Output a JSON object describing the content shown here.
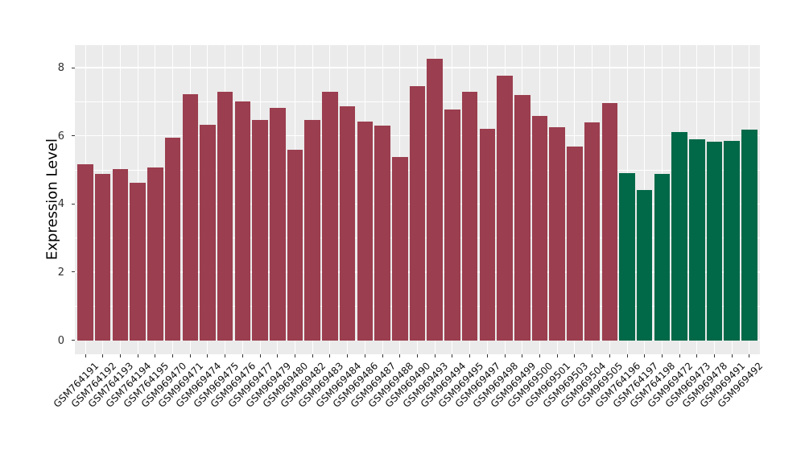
{
  "chart_data": {
    "type": "bar",
    "title": "",
    "xlabel": "",
    "ylabel": "Expression Level",
    "y_ticks": [
      0,
      2,
      4,
      6,
      8
    ],
    "y_minor_ticks": [
      1,
      3,
      5,
      7
    ],
    "ylim": [
      0,
      8.25
    ],
    "grid": true,
    "legend_position": "none",
    "panel_background": "#EBEBEB",
    "gridline_color": "#FFFFFF",
    "group_colors": {
      "red": "#9B3E4F",
      "green": "#026948"
    },
    "categories": [
      "GSM764191",
      "GSM764192",
      "GSM764193",
      "GSM764194",
      "GSM764195",
      "GSM969470",
      "GSM969471",
      "GSM969474",
      "GSM969475",
      "GSM969476",
      "GSM969477",
      "GSM969479",
      "GSM969480",
      "GSM969482",
      "GSM969483",
      "GSM969484",
      "GSM969486",
      "GSM969487",
      "GSM969488",
      "GSM969490",
      "GSM969493",
      "GSM969494",
      "GSM969495",
      "GSM969497",
      "GSM969498",
      "GSM969499",
      "GSM969500",
      "GSM969501",
      "GSM969503",
      "GSM969504",
      "GSM969505",
      "GSM764196",
      "GSM764197",
      "GSM764198",
      "GSM969472",
      "GSM969473",
      "GSM969478",
      "GSM969491",
      "GSM969492"
    ],
    "values": [
      5.17,
      4.89,
      5.02,
      4.61,
      5.06,
      5.94,
      7.21,
      6.33,
      7.3,
      7.02,
      6.47,
      6.83,
      5.59,
      6.47,
      7.29,
      6.87,
      6.41,
      6.31,
      5.37,
      7.46,
      8.25,
      6.77,
      7.29,
      6.21,
      7.77,
      7.2,
      6.58,
      6.25,
      5.68,
      6.4,
      6.95,
      4.9,
      4.42,
      4.89,
      6.11,
      5.89,
      5.83,
      5.85,
      6.17
    ],
    "groups": [
      "red",
      "red",
      "red",
      "red",
      "red",
      "red",
      "red",
      "red",
      "red",
      "red",
      "red",
      "red",
      "red",
      "red",
      "red",
      "red",
      "red",
      "red",
      "red",
      "red",
      "red",
      "red",
      "red",
      "red",
      "red",
      "red",
      "red",
      "red",
      "red",
      "red",
      "red",
      "green",
      "green",
      "green",
      "green",
      "green",
      "green",
      "green",
      "green"
    ]
  }
}
